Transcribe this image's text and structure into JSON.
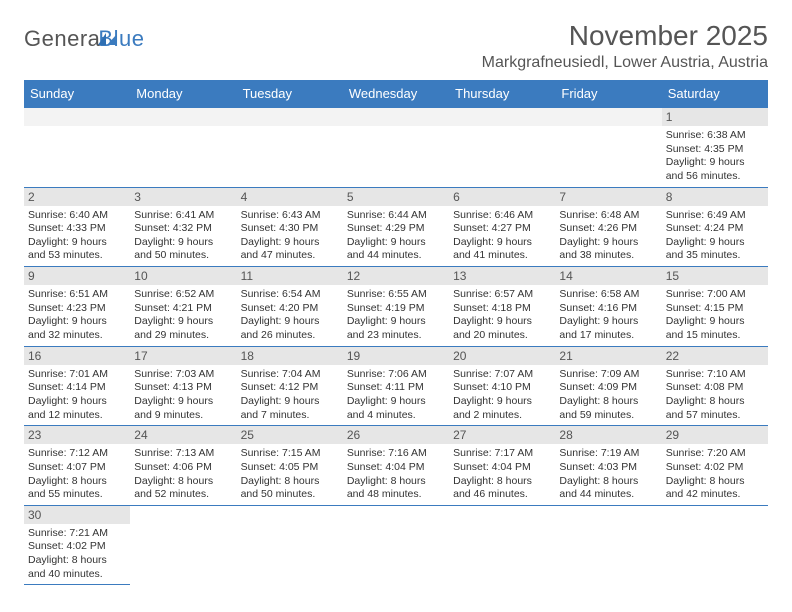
{
  "logo": {
    "general": "Genera",
    "blue": "Blue"
  },
  "title": "November 2025",
  "location": "Markgrafneusiedl, Lower Austria, Austria",
  "dayHeaders": [
    "Sunday",
    "Monday",
    "Tuesday",
    "Wednesday",
    "Thursday",
    "Friday",
    "Saturday"
  ],
  "header_bg": "#3b7bbf",
  "header_fg": "#ffffff",
  "daynum_bg": "#e6e6e6",
  "border_color": "#3b7bbf",
  "weeks": [
    [
      {
        "n": "",
        "sr": "",
        "ss": "",
        "dl": ""
      },
      {
        "n": "",
        "sr": "",
        "ss": "",
        "dl": ""
      },
      {
        "n": "",
        "sr": "",
        "ss": "",
        "dl": ""
      },
      {
        "n": "",
        "sr": "",
        "ss": "",
        "dl": ""
      },
      {
        "n": "",
        "sr": "",
        "ss": "",
        "dl": ""
      },
      {
        "n": "",
        "sr": "",
        "ss": "",
        "dl": ""
      },
      {
        "n": "1",
        "sr": "Sunrise: 6:38 AM",
        "ss": "Sunset: 4:35 PM",
        "dl": "Daylight: 9 hours and 56 minutes."
      }
    ],
    [
      {
        "n": "2",
        "sr": "Sunrise: 6:40 AM",
        "ss": "Sunset: 4:33 PM",
        "dl": "Daylight: 9 hours and 53 minutes."
      },
      {
        "n": "3",
        "sr": "Sunrise: 6:41 AM",
        "ss": "Sunset: 4:32 PM",
        "dl": "Daylight: 9 hours and 50 minutes."
      },
      {
        "n": "4",
        "sr": "Sunrise: 6:43 AM",
        "ss": "Sunset: 4:30 PM",
        "dl": "Daylight: 9 hours and 47 minutes."
      },
      {
        "n": "5",
        "sr": "Sunrise: 6:44 AM",
        "ss": "Sunset: 4:29 PM",
        "dl": "Daylight: 9 hours and 44 minutes."
      },
      {
        "n": "6",
        "sr": "Sunrise: 6:46 AM",
        "ss": "Sunset: 4:27 PM",
        "dl": "Daylight: 9 hours and 41 minutes."
      },
      {
        "n": "7",
        "sr": "Sunrise: 6:48 AM",
        "ss": "Sunset: 4:26 PM",
        "dl": "Daylight: 9 hours and 38 minutes."
      },
      {
        "n": "8",
        "sr": "Sunrise: 6:49 AM",
        "ss": "Sunset: 4:24 PM",
        "dl": "Daylight: 9 hours and 35 minutes."
      }
    ],
    [
      {
        "n": "9",
        "sr": "Sunrise: 6:51 AM",
        "ss": "Sunset: 4:23 PM",
        "dl": "Daylight: 9 hours and 32 minutes."
      },
      {
        "n": "10",
        "sr": "Sunrise: 6:52 AM",
        "ss": "Sunset: 4:21 PM",
        "dl": "Daylight: 9 hours and 29 minutes."
      },
      {
        "n": "11",
        "sr": "Sunrise: 6:54 AM",
        "ss": "Sunset: 4:20 PM",
        "dl": "Daylight: 9 hours and 26 minutes."
      },
      {
        "n": "12",
        "sr": "Sunrise: 6:55 AM",
        "ss": "Sunset: 4:19 PM",
        "dl": "Daylight: 9 hours and 23 minutes."
      },
      {
        "n": "13",
        "sr": "Sunrise: 6:57 AM",
        "ss": "Sunset: 4:18 PM",
        "dl": "Daylight: 9 hours and 20 minutes."
      },
      {
        "n": "14",
        "sr": "Sunrise: 6:58 AM",
        "ss": "Sunset: 4:16 PM",
        "dl": "Daylight: 9 hours and 17 minutes."
      },
      {
        "n": "15",
        "sr": "Sunrise: 7:00 AM",
        "ss": "Sunset: 4:15 PM",
        "dl": "Daylight: 9 hours and 15 minutes."
      }
    ],
    [
      {
        "n": "16",
        "sr": "Sunrise: 7:01 AM",
        "ss": "Sunset: 4:14 PM",
        "dl": "Daylight: 9 hours and 12 minutes."
      },
      {
        "n": "17",
        "sr": "Sunrise: 7:03 AM",
        "ss": "Sunset: 4:13 PM",
        "dl": "Daylight: 9 hours and 9 minutes."
      },
      {
        "n": "18",
        "sr": "Sunrise: 7:04 AM",
        "ss": "Sunset: 4:12 PM",
        "dl": "Daylight: 9 hours and 7 minutes."
      },
      {
        "n": "19",
        "sr": "Sunrise: 7:06 AM",
        "ss": "Sunset: 4:11 PM",
        "dl": "Daylight: 9 hours and 4 minutes."
      },
      {
        "n": "20",
        "sr": "Sunrise: 7:07 AM",
        "ss": "Sunset: 4:10 PM",
        "dl": "Daylight: 9 hours and 2 minutes."
      },
      {
        "n": "21",
        "sr": "Sunrise: 7:09 AM",
        "ss": "Sunset: 4:09 PM",
        "dl": "Daylight: 8 hours and 59 minutes."
      },
      {
        "n": "22",
        "sr": "Sunrise: 7:10 AM",
        "ss": "Sunset: 4:08 PM",
        "dl": "Daylight: 8 hours and 57 minutes."
      }
    ],
    [
      {
        "n": "23",
        "sr": "Sunrise: 7:12 AM",
        "ss": "Sunset: 4:07 PM",
        "dl": "Daylight: 8 hours and 55 minutes."
      },
      {
        "n": "24",
        "sr": "Sunrise: 7:13 AM",
        "ss": "Sunset: 4:06 PM",
        "dl": "Daylight: 8 hours and 52 minutes."
      },
      {
        "n": "25",
        "sr": "Sunrise: 7:15 AM",
        "ss": "Sunset: 4:05 PM",
        "dl": "Daylight: 8 hours and 50 minutes."
      },
      {
        "n": "26",
        "sr": "Sunrise: 7:16 AM",
        "ss": "Sunset: 4:04 PM",
        "dl": "Daylight: 8 hours and 48 minutes."
      },
      {
        "n": "27",
        "sr": "Sunrise: 7:17 AM",
        "ss": "Sunset: 4:04 PM",
        "dl": "Daylight: 8 hours and 46 minutes."
      },
      {
        "n": "28",
        "sr": "Sunrise: 7:19 AM",
        "ss": "Sunset: 4:03 PM",
        "dl": "Daylight: 8 hours and 44 minutes."
      },
      {
        "n": "29",
        "sr": "Sunrise: 7:20 AM",
        "ss": "Sunset: 4:02 PM",
        "dl": "Daylight: 8 hours and 42 minutes."
      }
    ],
    [
      {
        "n": "30",
        "sr": "Sunrise: 7:21 AM",
        "ss": "Sunset: 4:02 PM",
        "dl": "Daylight: 8 hours and 40 minutes."
      },
      {
        "n": "",
        "sr": "",
        "ss": "",
        "dl": ""
      },
      {
        "n": "",
        "sr": "",
        "ss": "",
        "dl": ""
      },
      {
        "n": "",
        "sr": "",
        "ss": "",
        "dl": ""
      },
      {
        "n": "",
        "sr": "",
        "ss": "",
        "dl": ""
      },
      {
        "n": "",
        "sr": "",
        "ss": "",
        "dl": ""
      },
      {
        "n": "",
        "sr": "",
        "ss": "",
        "dl": ""
      }
    ]
  ]
}
